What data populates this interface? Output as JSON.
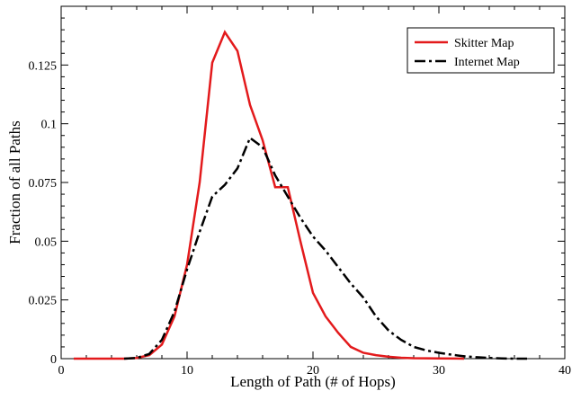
{
  "chart_data": {
    "type": "line",
    "title": "",
    "xlabel": "Length of Path (# of Hops)",
    "ylabel": "Fraction of all Paths",
    "xlim": [
      0,
      40
    ],
    "ylim": [
      0,
      0.15
    ],
    "xticks": [
      0,
      10,
      20,
      30,
      40
    ],
    "xtick_labels": [
      "0",
      "10",
      "20",
      "30",
      "40"
    ],
    "yticks": [
      0,
      0.025,
      0.05,
      0.075,
      0.1,
      0.125
    ],
    "ytick_labels": [
      "0",
      "0.025",
      "0.05",
      "0.075",
      "0.1",
      "0.125"
    ],
    "grid": false,
    "legend_position": "top-right",
    "series": [
      {
        "name": "Skitter Map",
        "color": "#e31a1c",
        "style": "solid",
        "x": [
          1,
          5,
          6,
          7,
          8,
          9,
          10,
          11,
          12,
          13,
          14,
          15,
          16,
          17,
          18,
          19,
          20,
          21,
          22,
          23,
          24,
          25,
          26,
          27,
          28,
          30,
          32
        ],
        "y": [
          0,
          0,
          0.0003,
          0.0015,
          0.006,
          0.018,
          0.04,
          0.075,
          0.126,
          0.139,
          0.131,
          0.108,
          0.093,
          0.073,
          0.073,
          0.05,
          0.028,
          0.018,
          0.011,
          0.005,
          0.0025,
          0.0015,
          0.0008,
          0.0004,
          0.0002,
          0.0001,
          0
        ]
      },
      {
        "name": "Internet Map",
        "color": "#000000",
        "style": "dashdot",
        "x": [
          5,
          6,
          7,
          8,
          9,
          10,
          11,
          12,
          13,
          14,
          15,
          16,
          17,
          18,
          19,
          20,
          21,
          22,
          23,
          24,
          25,
          26,
          27,
          28,
          29,
          30,
          31,
          32,
          33,
          34,
          35,
          36,
          37
        ],
        "y": [
          0,
          0.0003,
          0.002,
          0.008,
          0.02,
          0.038,
          0.054,
          0.069,
          0.074,
          0.081,
          0.094,
          0.09,
          0.078,
          0.069,
          0.06,
          0.052,
          0.046,
          0.039,
          0.032,
          0.026,
          0.018,
          0.012,
          0.008,
          0.005,
          0.0035,
          0.0025,
          0.0017,
          0.001,
          0.0006,
          0.0003,
          0.0001,
          0,
          0
        ]
      }
    ]
  }
}
